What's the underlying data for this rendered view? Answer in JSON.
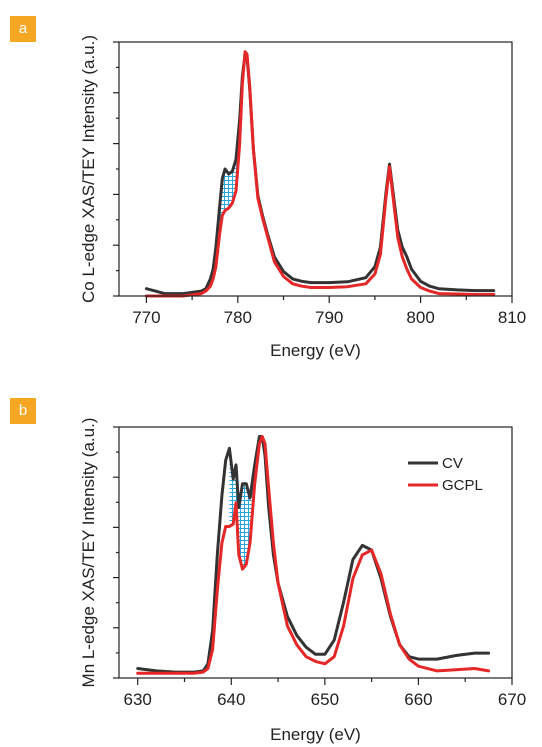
{
  "panels": [
    {
      "badge": "a"
    },
    {
      "badge": "b"
    }
  ],
  "chart_data": [
    {
      "type": "line",
      "xlabel": "Energy (eV)",
      "ylabel": "Co L-edge XAS/TEY Intensity (a.u.)",
      "xlim": [
        767,
        810
      ],
      "ylim": [
        0,
        1.04
      ],
      "xticks": [
        770,
        780,
        790,
        800,
        810
      ],
      "y_tick_labels": "none",
      "legend": "none",
      "hatched_region": {
        "x": [
          778.0,
          780.0
        ],
        "between": [
          "CV",
          "GCPL"
        ],
        "color": "#29a8e0"
      },
      "series": [
        {
          "key": "CV",
          "color": "#333333",
          "x": [
            770,
            772,
            774,
            775,
            776,
            776.5,
            777,
            777.3,
            777.6,
            778,
            778.3,
            778.6,
            779,
            779.4,
            779.8,
            780.2,
            780.5,
            780.8,
            781,
            781.3,
            781.7,
            782.2,
            782.7,
            783.2,
            784,
            785,
            786,
            787,
            788,
            790,
            792,
            794,
            795,
            795.6,
            796.2,
            796.6,
            797,
            797.5,
            798,
            798.5,
            799,
            800,
            801,
            802,
            804,
            806,
            808
          ],
          "y": [
            0.03,
            0.01,
            0.01,
            0.015,
            0.02,
            0.03,
            0.07,
            0.11,
            0.2,
            0.36,
            0.48,
            0.52,
            0.5,
            0.51,
            0.56,
            0.72,
            0.9,
            0.99,
            0.98,
            0.85,
            0.6,
            0.41,
            0.33,
            0.26,
            0.16,
            0.1,
            0.07,
            0.06,
            0.055,
            0.055,
            0.058,
            0.075,
            0.12,
            0.2,
            0.42,
            0.54,
            0.42,
            0.27,
            0.2,
            0.16,
            0.11,
            0.06,
            0.04,
            0.03,
            0.025,
            0.022,
            0.022
          ]
        },
        {
          "key": "GCPL",
          "color": "#e52727",
          "x": [
            770,
            772,
            774,
            775,
            776,
            776.5,
            777,
            777.3,
            777.6,
            778,
            778.3,
            778.6,
            779,
            779.4,
            779.8,
            780.2,
            780.5,
            780.8,
            781,
            781.3,
            781.7,
            782.2,
            782.7,
            783.2,
            784,
            785,
            786,
            787,
            788,
            790,
            792,
            794,
            795,
            795.6,
            796.2,
            796.6,
            797,
            797.5,
            798,
            798.5,
            799,
            800,
            801,
            802,
            804,
            806,
            808
          ],
          "y": [
            0.0,
            0.0,
            0.0,
            0.005,
            0.01,
            0.02,
            0.04,
            0.07,
            0.12,
            0.25,
            0.33,
            0.35,
            0.36,
            0.38,
            0.43,
            0.62,
            0.87,
            1.0,
            0.99,
            0.86,
            0.6,
            0.4,
            0.32,
            0.25,
            0.14,
            0.08,
            0.05,
            0.04,
            0.035,
            0.035,
            0.038,
            0.05,
            0.09,
            0.17,
            0.4,
            0.53,
            0.4,
            0.24,
            0.16,
            0.11,
            0.07,
            0.035,
            0.02,
            0.01,
            0.008,
            0.006,
            0.006
          ]
        }
      ]
    },
    {
      "type": "line",
      "xlabel": "Energy (eV)",
      "ylabel": "Mn L-edge XAS/TEY Intensity (a.u.)",
      "xlim": [
        628,
        670
      ],
      "ylim": [
        -0.02,
        1.04
      ],
      "xticks": [
        630,
        640,
        650,
        660,
        670
      ],
      "y_tick_labels": "none",
      "legend": "top-right",
      "hatched_region": {
        "x": [
          639.8,
          642.6
        ],
        "between": [
          "CV",
          "GCPL"
        ],
        "color": "#29a8e0"
      },
      "series": [
        {
          "key": "CV",
          "name": "CV",
          "color": "#333333",
          "x": [
            630,
            632,
            634,
            636,
            637,
            637.5,
            638,
            638.5,
            639,
            639.4,
            639.8,
            640.2,
            640.5,
            640.8,
            641.2,
            641.6,
            642,
            642.5,
            643,
            643.3,
            643.6,
            644,
            644.5,
            645,
            646,
            647,
            648,
            649,
            650,
            651,
            652,
            653,
            654,
            655,
            656,
            657,
            658,
            659,
            660,
            662,
            664,
            666,
            667.5
          ],
          "y": [
            0.02,
            0.01,
            0.005,
            0.005,
            0.01,
            0.04,
            0.18,
            0.5,
            0.75,
            0.9,
            0.95,
            0.82,
            0.88,
            0.7,
            0.8,
            0.8,
            0.74,
            0.88,
            1.0,
            1.0,
            0.92,
            0.7,
            0.5,
            0.38,
            0.24,
            0.16,
            0.11,
            0.08,
            0.08,
            0.14,
            0.3,
            0.48,
            0.54,
            0.52,
            0.4,
            0.24,
            0.12,
            0.07,
            0.06,
            0.06,
            0.075,
            0.085,
            0.085
          ]
        },
        {
          "key": "GCPL",
          "name": "GCPL",
          "color": "#e52727",
          "x": [
            630,
            632,
            634,
            636,
            637,
            637.5,
            638,
            638.5,
            639,
            639.4,
            639.8,
            640.2,
            640.5,
            640.8,
            641.2,
            641.6,
            642,
            642.5,
            643,
            643.3,
            643.6,
            644,
            644.5,
            645,
            646,
            647,
            648,
            649,
            650,
            651,
            652,
            653,
            654,
            655,
            656,
            657,
            658,
            659,
            660,
            662,
            664,
            666,
            667.5
          ],
          "y": [
            0.0,
            0.0,
            0.0,
            0.0,
            0.005,
            0.02,
            0.1,
            0.35,
            0.55,
            0.62,
            0.62,
            0.63,
            0.72,
            0.5,
            0.44,
            0.46,
            0.55,
            0.8,
            0.97,
            1.0,
            0.97,
            0.78,
            0.55,
            0.38,
            0.2,
            0.12,
            0.07,
            0.05,
            0.04,
            0.07,
            0.2,
            0.4,
            0.5,
            0.52,
            0.42,
            0.25,
            0.12,
            0.06,
            0.03,
            0.01,
            0.015,
            0.02,
            0.01
          ]
        }
      ]
    }
  ]
}
